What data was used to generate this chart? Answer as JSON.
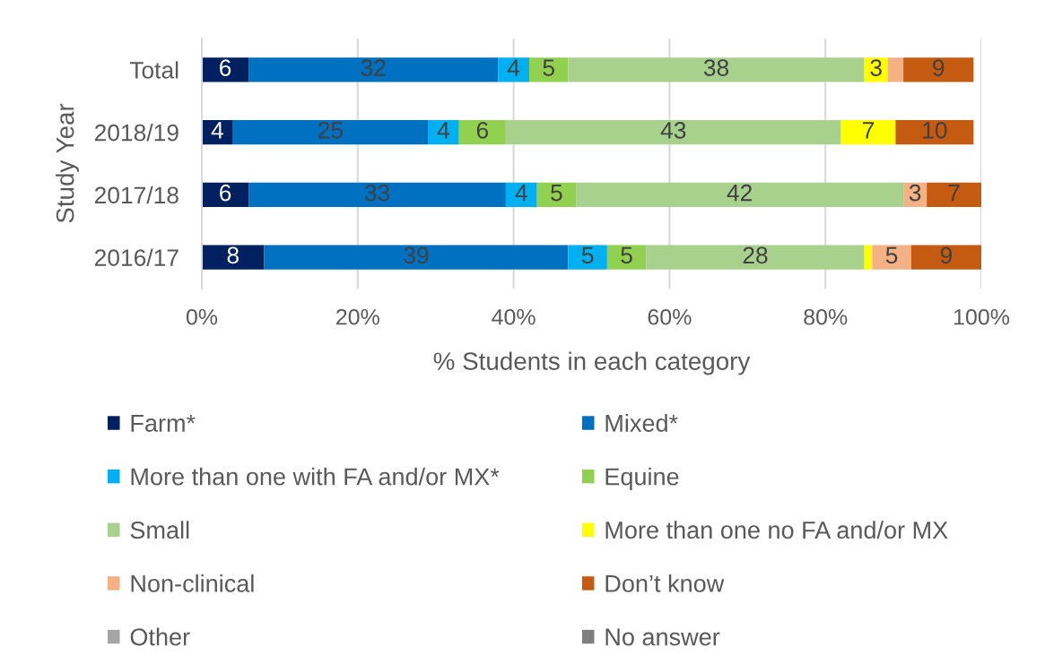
{
  "chart_data": {
    "type": "bar",
    "orientation": "horizontal",
    "stacked": true,
    "xlabel": "% Students in each category",
    "ylabel": "Study Year",
    "categories": [
      "Total",
      "2018/19",
      "2017/18",
      "2016/17"
    ],
    "xlim": [
      0,
      100
    ],
    "xticks": [
      {
        "value": 0,
        "label": "0%"
      },
      {
        "value": 20,
        "label": "20%"
      },
      {
        "value": 40,
        "label": "40%"
      },
      {
        "value": 60,
        "label": "60%"
      },
      {
        "value": 80,
        "label": "80%"
      },
      {
        "value": 100,
        "label": "100%"
      }
    ],
    "grid": "x",
    "legend": "bottom",
    "series": [
      {
        "name": "Farm*",
        "color": "#002060",
        "values": [
          6,
          4,
          6,
          8
        ],
        "value_labels": [
          "6",
          "4",
          "6",
          "8"
        ]
      },
      {
        "name": "Mixed*",
        "color": "#0070c0",
        "values": [
          32,
          25,
          33,
          39
        ],
        "value_labels": [
          "32",
          "25",
          "33",
          "39"
        ]
      },
      {
        "name": "More than one with FA and/or MX*",
        "color": "#00b0f0",
        "values": [
          4,
          4,
          4,
          5
        ],
        "value_labels": [
          "4",
          "4",
          "4",
          "5"
        ]
      },
      {
        "name": "Equine",
        "color": "#92d050",
        "values": [
          5,
          6,
          5,
          5
        ],
        "value_labels": [
          "5",
          "6",
          "5",
          "5"
        ]
      },
      {
        "name": "Small",
        "color": "#a9d18e",
        "values": [
          38,
          43,
          42,
          28
        ],
        "value_labels": [
          "38",
          "43",
          "42",
          "28"
        ]
      },
      {
        "name": "More than one no FA and/or MX",
        "color": "#ffff00",
        "values": [
          3,
          7,
          null,
          1
        ],
        "value_labels": [
          "3",
          "7",
          null,
          null
        ]
      },
      {
        "name": "Non-clinical",
        "color": "#f4b183",
        "values": [
          2,
          null,
          3,
          5
        ],
        "value_labels": [
          null,
          null,
          "3",
          "5"
        ]
      },
      {
        "name": "Don’t know",
        "color": "#c55a11",
        "values": [
          9,
          10,
          7,
          9
        ],
        "value_labels": [
          "9",
          "10",
          "7",
          "9"
        ]
      },
      {
        "name": "Other",
        "color": "#a5a5a5",
        "values": [
          null,
          null,
          null,
          null
        ]
      },
      {
        "name": "No answer",
        "color": "#7f7f7f",
        "values": [
          null,
          null,
          null,
          null
        ]
      }
    ]
  }
}
